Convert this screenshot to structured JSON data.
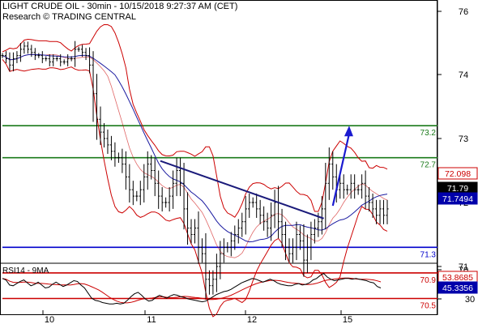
{
  "header": {
    "title": "LIGHT CRUDE OIL - 30min - 10/15/2018 9:27:37 AM (CET)",
    "source": "Research © TRADING CENTRAL"
  },
  "colors": {
    "price": "#000000",
    "bollinger": "#cc0000",
    "moving_average": "#1a1aa0",
    "resistance": "#1a7a1a",
    "pivot": "#0000cc",
    "support": "#cc0000",
    "trendline": "#1a1a7a",
    "arrow": "#1a1ad0",
    "rsi": "#000000",
    "rsi_signal": "#cc0000",
    "axis_text": "#000000"
  },
  "chart_data": [
    {
      "type": "line",
      "subtype": "ohlc-bars",
      "x_ticks": [
        "10",
        "11",
        "12",
        "15"
      ],
      "y_ticks": [
        76,
        74,
        73,
        72,
        71,
        70
      ],
      "ylim": [
        70.4,
        76.5
      ],
      "grid": false,
      "levels": [
        {
          "value": 73.2,
          "label": "73.2",
          "kind": "resistance"
        },
        {
          "value": 72.7,
          "label": "72.7",
          "kind": "resistance"
        },
        {
          "value": 71.3,
          "label": "71.3",
          "kind": "pivot"
        },
        {
          "value": 70.9,
          "label": "70.9",
          "kind": "support"
        },
        {
          "value": 70.5,
          "label": "70.5",
          "kind": "support"
        }
      ],
      "value_tags": [
        {
          "value": 72.098,
          "label": "72.098",
          "style": "red"
        },
        {
          "value": 71.79,
          "label": "71.79",
          "style": "black"
        },
        {
          "value": 71.7494,
          "label": "71.7494",
          "style": "blue"
        }
      ],
      "price_x": [
        0,
        2,
        4,
        6,
        8,
        10,
        12,
        14,
        16,
        18,
        20,
        22,
        24,
        26,
        28,
        30,
        32,
        34,
        36,
        38,
        40,
        42,
        44,
        46,
        48,
        50,
        52,
        54,
        56,
        58,
        60,
        62,
        64,
        66,
        68,
        70,
        72,
        74,
        76,
        78,
        80,
        82,
        84,
        86,
        88,
        90,
        92,
        94,
        96,
        98,
        100,
        102,
        104,
        106,
        108,
        110,
        112,
        114,
        116,
        118,
        120,
        122,
        124,
        126,
        128,
        130,
        132,
        134,
        136,
        138,
        140,
        142,
        144,
        146,
        148,
        150,
        152,
        154,
        156,
        158,
        160,
        162,
        164,
        166,
        168,
        170,
        172,
        174,
        176,
        178,
        180,
        182,
        184,
        186,
        188,
        190,
        192,
        194,
        196,
        198,
        200,
        202,
        204,
        206,
        208,
        210,
        212
      ],
      "price": [
        74.6,
        74.5,
        74.3,
        74.5,
        74.6,
        74.8,
        74.9,
        74.8,
        74.7,
        74.6,
        74.6,
        74.5,
        74.5,
        74.4,
        74.5,
        74.5,
        74.4,
        74.4,
        74.5,
        74.5,
        74.8,
        74.8,
        74.7,
        74.6,
        74.3,
        73.7,
        73.3,
        73.1,
        73.0,
        72.9,
        72.8,
        72.7,
        72.7,
        72.6,
        72.4,
        72.2,
        72.1,
        72.1,
        72.2,
        72.4,
        72.6,
        72.5,
        72.3,
        72.1,
        72.0,
        72.0,
        72.1,
        72.3,
        72.5,
        72.3,
        71.9,
        71.6,
        71.5,
        71.6,
        71.3,
        71.2,
        70.8,
        70.7,
        70.8,
        71.0,
        71.2,
        71.3,
        71.3,
        71.4,
        71.5,
        71.6,
        71.7,
        71.9,
        72.0,
        72.0,
        71.9,
        71.8,
        71.7,
        71.6,
        71.8,
        72.0,
        71.7,
        71.5,
        71.3,
        71.2,
        71.3,
        71.5,
        71.4,
        71.1,
        71.3,
        71.5,
        71.6,
        71.7,
        71.9,
        72.3,
        72.6,
        72.4,
        72.2,
        72.3,
        72.2,
        72.2,
        72.3,
        72.2,
        72.2,
        72.3,
        72.1,
        72.0,
        71.9,
        71.8,
        71.9,
        71.8,
        71.9
      ],
      "trendline": {
        "from": [
          87,
          72.65
        ],
        "to": [
          177,
          71.75
        ]
      },
      "forecast_arrow": {
        "from": [
          182,
          71.95
        ],
        "to": [
          191,
          73.2
        ]
      }
    },
    {
      "type": "line",
      "title": "RSI14 - 9MA",
      "y_ticks": [
        70,
        30
      ],
      "ylim": [
        20,
        76
      ],
      "value_tags": [
        {
          "value": 53.8685,
          "label": "53.8685",
          "style": "red"
        },
        {
          "value": 45.3356,
          "label": "45.3356",
          "style": "blue"
        }
      ],
      "rsi": [
        58,
        56,
        49,
        48,
        51,
        54,
        56,
        52,
        48,
        50,
        53,
        49,
        45,
        46,
        50,
        53,
        50,
        47,
        49,
        52,
        55,
        54,
        49,
        45,
        38,
        31,
        28,
        27,
        25,
        24,
        23,
        23,
        24,
        23,
        24,
        28,
        33,
        37,
        39,
        35,
        30,
        27,
        28,
        32,
        35,
        33,
        31,
        34,
        36,
        35,
        33,
        32,
        30,
        29,
        28,
        27,
        26,
        27,
        30,
        33,
        36,
        38,
        40,
        41,
        43,
        46,
        49,
        52,
        54,
        56,
        58,
        57,
        55,
        53,
        55,
        57,
        55,
        52,
        50,
        49,
        48,
        48,
        50,
        51,
        49,
        50,
        52,
        56,
        58,
        62,
        65,
        60,
        57,
        55,
        56,
        57,
        58,
        58,
        57,
        58,
        57,
        56,
        55,
        53,
        52,
        47,
        45
      ]
    }
  ]
}
